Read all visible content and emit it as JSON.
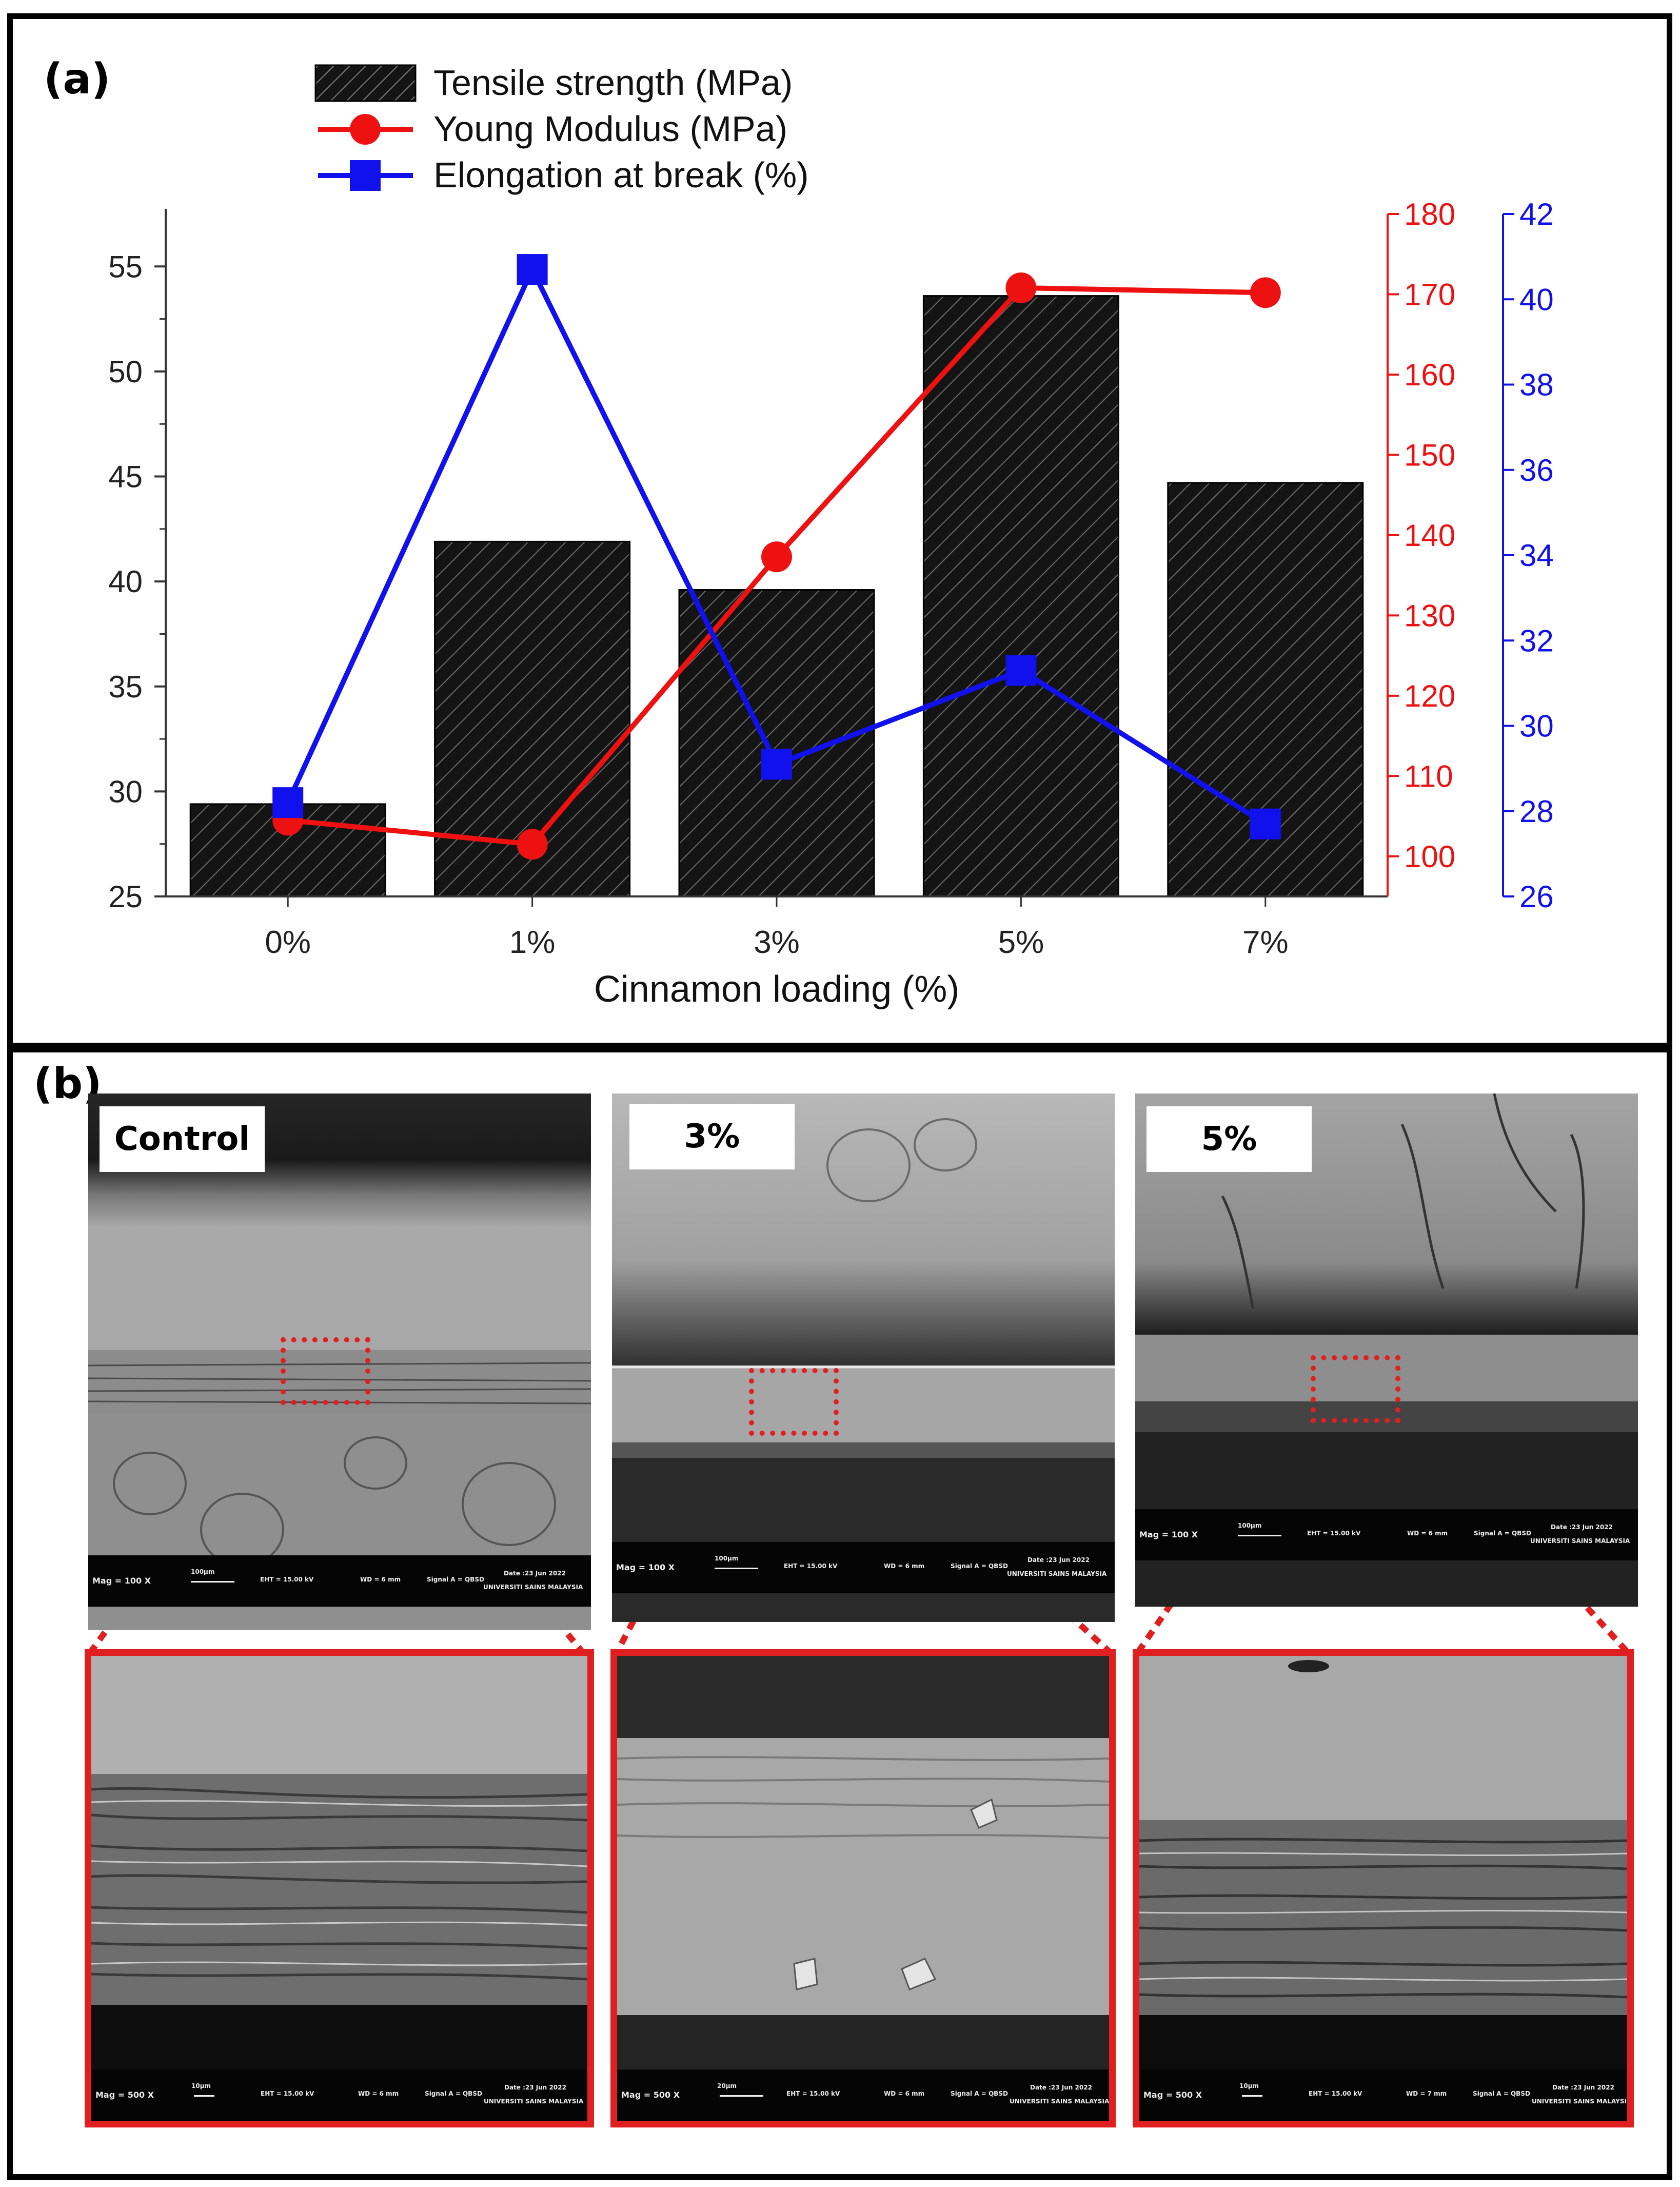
{
  "panel_a": {
    "label": "(a)",
    "chart_data": {
      "type": "bar",
      "categories": [
        "0%",
        "1%",
        "3%",
        "5%",
        "7%"
      ],
      "xlabel": "Cinnamon loading (%)",
      "series": [
        {
          "name": "Tensile strength (MPa)",
          "kind": "bar",
          "axis": "left",
          "values": [
            29.4,
            41.9,
            39.6,
            53.6,
            44.7
          ]
        },
        {
          "name": "Young Modulus (MPa)",
          "kind": "line",
          "axis": "right1",
          "values": [
            104.5,
            101.5,
            137.3,
            170.8,
            170.2
          ]
        },
        {
          "name": "Elongation at break (%)",
          "kind": "line",
          "axis": "right2",
          "values": [
            28.2,
            40.7,
            29.1,
            31.3,
            27.7
          ]
        }
      ],
      "axes": {
        "left": {
          "ylim": [
            25,
            57.5
          ],
          "ticks": [
            25,
            30,
            35,
            40,
            45,
            50,
            55
          ]
        },
        "right1": {
          "ylim": [
            95,
            180
          ],
          "ticks": [
            100,
            110,
            120,
            130,
            140,
            150,
            160,
            170,
            180
          ]
        },
        "right2": {
          "ylim": [
            26,
            42
          ],
          "ticks": [
            26,
            28,
            30,
            32,
            34,
            36,
            38,
            40,
            42
          ]
        }
      },
      "colors": {
        "bar": "#111111",
        "modulus": "#ee1111",
        "elongation": "#1111ee"
      },
      "legend_position": "top-left"
    }
  },
  "panel_b": {
    "label": "(b)",
    "samples": [
      {
        "label": "Control",
        "overview": {
          "mag": "Mag =  100 X",
          "scale": "100µm",
          "eht": "EHT = 15.00 kV",
          "wd": "WD =  6 mm",
          "signal": "Signal A = QBSD",
          "date": "Date :23 Jun 2022",
          "org": "UNIVERSITI SAINS MALAYSIA"
        },
        "zoom": {
          "mag": "Mag =  500 X",
          "scale": "10µm",
          "eht": "EHT = 15.00 kV",
          "wd": "WD =  6 mm",
          "signal": "Signal A = QBSD",
          "date": "Date :23 Jun 2022",
          "org": "UNIVERSITI SAINS MALAYSIA"
        }
      },
      {
        "label": "3%",
        "overview": {
          "mag": "Mag =  100 X",
          "scale": "100µm",
          "eht": "EHT = 15.00 kV",
          "wd": "WD =  6 mm",
          "signal": "Signal A = QBSD",
          "date": "Date :23 Jun 2022",
          "org": "UNIVERSITI SAINS MALAYSIA"
        },
        "zoom": {
          "mag": "Mag =  500 X",
          "scale": "20µm",
          "eht": "EHT = 15.00 kV",
          "wd": "WD =  6 mm",
          "signal": "Signal A = QBSD",
          "date": "Date :23 Jun 2022",
          "org": "UNIVERSITI SAINS MALAYSIA"
        }
      },
      {
        "label": "5%",
        "overview": {
          "mag": "Mag =  100 X",
          "scale": "100µm",
          "eht": "EHT = 15.00 kV",
          "wd": "WD =  6 mm",
          "signal": "Signal A = QBSD",
          "date": "Date :23 Jun 2022",
          "org": "UNIVERSITI SAINS MALAYSIA"
        },
        "zoom": {
          "mag": "Mag =  500 X",
          "scale": "10µm",
          "eht": "EHT = 15.00 kV",
          "wd": "WD =  7 mm",
          "signal": "Signal A = QBSD",
          "date": "Date :23 Jun 2022",
          "org": "UNIVERSITI SAINS MALAYSIA"
        }
      }
    ]
  }
}
